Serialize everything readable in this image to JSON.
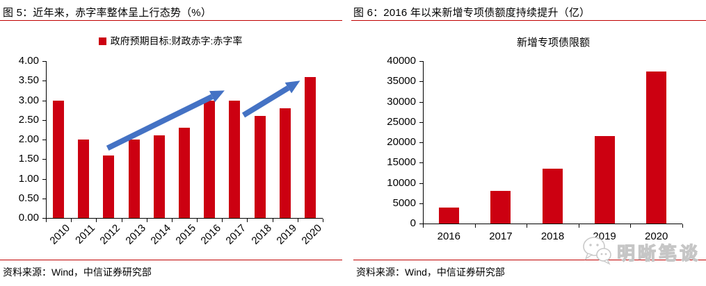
{
  "colors": {
    "bar": "#CC0011",
    "arrow": "#4472C4",
    "axis": "#000000",
    "rule": "#C00000"
  },
  "figure5": {
    "title": "图 5：近年来，赤字率整体呈上行态势（%）",
    "legend": "政府预期目标:财政赤字:赤字率",
    "source": "资料来源：Wind，中信证券研究部"
  },
  "figure6": {
    "title": "图 6：2016 年以来新增专项债额度持续提升（亿）",
    "chart_title": "新增专项债限额",
    "source": "资料来源：Wind，中信证券研究部"
  },
  "watermark": {
    "text": "明晰笔谈",
    "icon": "wechat-chat-bubbles"
  },
  "chart_data": [
    {
      "type": "bar",
      "title": "政府预期目标:财政赤字:赤字率",
      "categories": [
        "2010",
        "2011",
        "2012",
        "2013",
        "2014",
        "2015",
        "2016",
        "2017",
        "2018",
        "2019",
        "2020"
      ],
      "values": [
        3.0,
        2.0,
        1.6,
        2.0,
        2.1,
        2.3,
        3.0,
        3.0,
        2.6,
        2.8,
        3.6
      ],
      "xlabel": "",
      "ylabel": "",
      "ylim": [
        0,
        4.0
      ],
      "ytick_step": 0.5,
      "ytick_decimals": 2,
      "grid": false,
      "legend_position": "top-center",
      "arrows": [
        {
          "x1": 1.95,
          "y1": 1.78,
          "x2": 6.6,
          "y2": 3.25
        },
        {
          "x1": 7.35,
          "y1": 2.62,
          "x2": 9.6,
          "y2": 3.5
        }
      ]
    },
    {
      "type": "bar",
      "title": "新增专项债限额",
      "categories": [
        "2016",
        "2017",
        "2018",
        "2019",
        "2020"
      ],
      "values": [
        4000,
        8000,
        13500,
        21500,
        37500
      ],
      "xlabel": "",
      "ylabel": "",
      "ylim": [
        0,
        40000
      ],
      "ytick_step": 5000,
      "ytick_decimals": 0,
      "grid": false,
      "legend_position": "none"
    }
  ]
}
